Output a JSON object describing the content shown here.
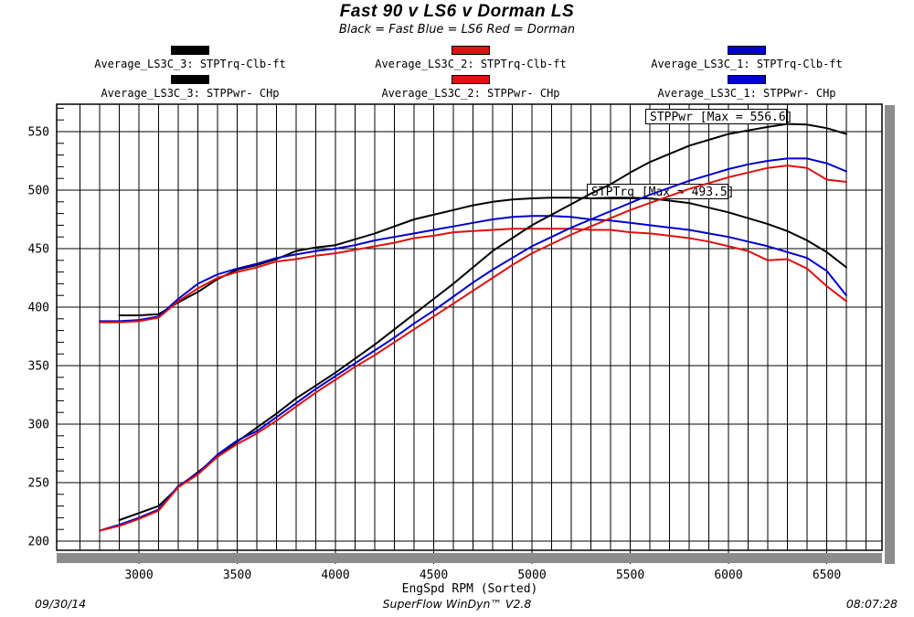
{
  "header": {
    "title": "Fast 90 v LS6 v Dorman LS",
    "subtitle": "Black = Fast  Blue = LS6  Red = Dorman"
  },
  "legend": {
    "columns": [
      {
        "color": "#000000",
        "torque_label": "Average_LS3C_3: STPTrq-Clb-ft",
        "power_label": "Average_LS3C_3: STPPwr- CHp"
      },
      {
        "color": "#dd1111",
        "torque_label": "Average_LS3C_2: STPTrq-Clb-ft",
        "power_label": "Average_LS3C_2: STPPwr- CHp"
      },
      {
        "color": "#0000cc",
        "torque_label": "Average_LS3C_1: STPTrq-Clb-ft",
        "power_label": "Average_LS3C_1: STPPwr- CHp"
      }
    ]
  },
  "chart_data": {
    "type": "line",
    "title": "Fast 90 v LS6 v Dorman LS",
    "xlabel": "EngSpd  RPM  (Sorted)",
    "ylabel": "",
    "grid": "on",
    "x_range": [
      2700,
      6800
    ],
    "y_range": [
      192,
      572
    ],
    "x_ticks": [
      3000,
      3500,
      4000,
      4500,
      5000,
      5500,
      6000,
      6500
    ],
    "y_ticks": [
      200,
      250,
      300,
      350,
      400,
      450,
      500,
      550
    ],
    "x_minor_step": 100,
    "y_minor_step": 10,
    "annotations": [
      {
        "text": "STPPwr [Max = 556.6]",
        "x": 706,
        "y": 119
      },
      {
        "text": "STPTrq [Max = 493.5]",
        "x": 642,
        "y": 201
      }
    ],
    "series": [
      {
        "name": "Average_LS3C_3: STPTrq-Clb-ft",
        "color": "#000000",
        "unit": "Clb-ft",
        "points": [
          [
            2900,
            393
          ],
          [
            3000,
            393
          ],
          [
            3100,
            394
          ],
          [
            3200,
            404
          ],
          [
            3300,
            413
          ],
          [
            3400,
            424
          ],
          [
            3500,
            432
          ],
          [
            3600,
            436
          ],
          [
            3700,
            441
          ],
          [
            3800,
            448
          ],
          [
            3900,
            451
          ],
          [
            4000,
            453
          ],
          [
            4100,
            458
          ],
          [
            4200,
            463
          ],
          [
            4300,
            469
          ],
          [
            4400,
            475
          ],
          [
            4500,
            479
          ],
          [
            4600,
            483
          ],
          [
            4700,
            487
          ],
          [
            4800,
            490
          ],
          [
            4900,
            492
          ],
          [
            5000,
            493
          ],
          [
            5100,
            493.5
          ],
          [
            5200,
            493.5
          ],
          [
            5300,
            493
          ],
          [
            5400,
            493.5
          ],
          [
            5500,
            493.5
          ],
          [
            5600,
            493
          ],
          [
            5700,
            491
          ],
          [
            5800,
            489
          ],
          [
            5900,
            485
          ],
          [
            6000,
            481
          ],
          [
            6100,
            476
          ],
          [
            6200,
            471
          ],
          [
            6300,
            465
          ],
          [
            6400,
            457
          ],
          [
            6500,
            447
          ],
          [
            6600,
            434
          ]
        ]
      },
      {
        "name": "Average_LS3C_1: STPTrq-Clb-ft",
        "color": "#0000cc",
        "unit": "Clb-ft",
        "points": [
          [
            2800,
            388
          ],
          [
            2900,
            388
          ],
          [
            3000,
            389
          ],
          [
            3100,
            392
          ],
          [
            3200,
            407
          ],
          [
            3300,
            420
          ],
          [
            3400,
            428
          ],
          [
            3500,
            433
          ],
          [
            3600,
            437
          ],
          [
            3700,
            442
          ],
          [
            3800,
            445
          ],
          [
            3900,
            448
          ],
          [
            4000,
            450
          ],
          [
            4100,
            453
          ],
          [
            4200,
            457
          ],
          [
            4300,
            460
          ],
          [
            4400,
            463
          ],
          [
            4500,
            466
          ],
          [
            4600,
            469
          ],
          [
            4700,
            472
          ],
          [
            4800,
            475
          ],
          [
            4900,
            477
          ],
          [
            5000,
            478
          ],
          [
            5100,
            478
          ],
          [
            5200,
            477
          ],
          [
            5300,
            475
          ],
          [
            5400,
            474
          ],
          [
            5500,
            472
          ],
          [
            5600,
            470
          ],
          [
            5700,
            468
          ],
          [
            5800,
            466
          ],
          [
            5900,
            463
          ],
          [
            6000,
            460
          ],
          [
            6100,
            456
          ],
          [
            6200,
            452
          ],
          [
            6300,
            447
          ],
          [
            6400,
            442
          ],
          [
            6500,
            431
          ],
          [
            6600,
            410
          ]
        ]
      },
      {
        "name": "Average_LS3C_2: STPTrq-Clb-ft",
        "color": "#dd1111",
        "unit": "Clb-ft",
        "points": [
          [
            2800,
            387
          ],
          [
            2900,
            387
          ],
          [
            3000,
            388
          ],
          [
            3100,
            391
          ],
          [
            3200,
            405
          ],
          [
            3300,
            416
          ],
          [
            3400,
            425
          ],
          [
            3500,
            430
          ],
          [
            3600,
            434
          ],
          [
            3700,
            439
          ],
          [
            3800,
            441
          ],
          [
            3900,
            444
          ],
          [
            4000,
            446
          ],
          [
            4100,
            449
          ],
          [
            4200,
            452
          ],
          [
            4300,
            455
          ],
          [
            4400,
            459
          ],
          [
            4500,
            461
          ],
          [
            4600,
            464
          ],
          [
            4700,
            465
          ],
          [
            4800,
            466
          ],
          [
            4900,
            467
          ],
          [
            5000,
            467
          ],
          [
            5100,
            467
          ],
          [
            5200,
            467
          ],
          [
            5300,
            466
          ],
          [
            5400,
            466
          ],
          [
            5500,
            464
          ],
          [
            5600,
            463
          ],
          [
            5700,
            461
          ],
          [
            5800,
            459
          ],
          [
            5900,
            456
          ],
          [
            6000,
            452
          ],
          [
            6100,
            448
          ],
          [
            6200,
            440
          ],
          [
            6300,
            441
          ],
          [
            6400,
            433
          ],
          [
            6500,
            418
          ],
          [
            6600,
            405
          ]
        ]
      },
      {
        "name": "Average_LS3C_3: STPPwr- CHp",
        "color": "#000000",
        "unit": "CHp",
        "points": [
          [
            2900,
            218
          ],
          [
            3000,
            224
          ],
          [
            3100,
            230
          ],
          [
            3200,
            246
          ],
          [
            3300,
            259
          ],
          [
            3400,
            272
          ],
          [
            3500,
            285
          ],
          [
            3600,
            297
          ],
          [
            3700,
            309
          ],
          [
            3800,
            322
          ],
          [
            3900,
            333
          ],
          [
            4000,
            344
          ],
          [
            4100,
            356
          ],
          [
            4200,
            368
          ],
          [
            4300,
            381
          ],
          [
            4400,
            394
          ],
          [
            4500,
            407
          ],
          [
            4600,
            420
          ],
          [
            4700,
            434
          ],
          [
            4800,
            448
          ],
          [
            4900,
            459
          ],
          [
            5000,
            470
          ],
          [
            5100,
            479
          ],
          [
            5200,
            488
          ],
          [
            5300,
            497
          ],
          [
            5400,
            505
          ],
          [
            5500,
            515
          ],
          [
            5600,
            524
          ],
          [
            5700,
            531
          ],
          [
            5800,
            538
          ],
          [
            5900,
            543
          ],
          [
            6000,
            548
          ],
          [
            6100,
            551
          ],
          [
            6200,
            554
          ],
          [
            6300,
            556.6
          ],
          [
            6400,
            556
          ],
          [
            6500,
            553
          ],
          [
            6600,
            548
          ]
        ]
      },
      {
        "name": "Average_LS3C_1: STPPwr- CHp",
        "color": "#0000cc",
        "unit": "CHp",
        "points": [
          [
            2800,
            209
          ],
          [
            2900,
            214
          ],
          [
            3000,
            220
          ],
          [
            3100,
            227
          ],
          [
            3200,
            247
          ],
          [
            3300,
            258
          ],
          [
            3400,
            274
          ],
          [
            3500,
            286
          ],
          [
            3600,
            294
          ],
          [
            3700,
            306
          ],
          [
            3800,
            318
          ],
          [
            3900,
            330
          ],
          [
            4000,
            341
          ],
          [
            4100,
            352
          ],
          [
            4200,
            363
          ],
          [
            4300,
            374
          ],
          [
            4400,
            386
          ],
          [
            4500,
            397
          ],
          [
            4600,
            409
          ],
          [
            4700,
            421
          ],
          [
            4800,
            432
          ],
          [
            4900,
            442
          ],
          [
            5000,
            452
          ],
          [
            5100,
            460
          ],
          [
            5200,
            468
          ],
          [
            5300,
            475
          ],
          [
            5400,
            482
          ],
          [
            5500,
            489
          ],
          [
            5600,
            496
          ],
          [
            5700,
            502
          ],
          [
            5800,
            508
          ],
          [
            5900,
            513
          ],
          [
            6000,
            518
          ],
          [
            6100,
            522
          ],
          [
            6200,
            525
          ],
          [
            6300,
            527
          ],
          [
            6400,
            527
          ],
          [
            6500,
            523
          ],
          [
            6600,
            516
          ]
        ]
      },
      {
        "name": "Average_LS3C_2: STPPwr- CHp",
        "color": "#dd1111",
        "unit": "CHp",
        "points": [
          [
            2800,
            209
          ],
          [
            2900,
            213
          ],
          [
            3000,
            219
          ],
          [
            3100,
            226
          ],
          [
            3200,
            246
          ],
          [
            3300,
            257
          ],
          [
            3400,
            272
          ],
          [
            3500,
            283
          ],
          [
            3600,
            292
          ],
          [
            3700,
            303
          ],
          [
            3800,
            315
          ],
          [
            3900,
            327
          ],
          [
            4000,
            338
          ],
          [
            4100,
            349
          ],
          [
            4200,
            359
          ],
          [
            4300,
            370
          ],
          [
            4400,
            381
          ],
          [
            4500,
            392
          ],
          [
            4600,
            403
          ],
          [
            4700,
            414
          ],
          [
            4800,
            425
          ],
          [
            4900,
            436
          ],
          [
            5000,
            446
          ],
          [
            5100,
            454
          ],
          [
            5200,
            462
          ],
          [
            5300,
            469
          ],
          [
            5400,
            476
          ],
          [
            5500,
            483
          ],
          [
            5600,
            489
          ],
          [
            5700,
            495
          ],
          [
            5800,
            501
          ],
          [
            5900,
            506
          ],
          [
            6000,
            511
          ],
          [
            6100,
            515
          ],
          [
            6200,
            519
          ],
          [
            6300,
            521
          ],
          [
            6400,
            519
          ],
          [
            6500,
            509
          ],
          [
            6600,
            507
          ]
        ]
      }
    ]
  },
  "footer": {
    "date": "09/30/14",
    "app": "SuperFlow WinDyn™ V2.8",
    "time": "08:07:28"
  }
}
